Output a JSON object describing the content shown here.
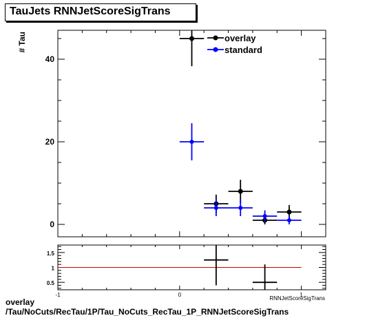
{
  "title": "TauJets RNNJetScoreSigTrans",
  "footer": {
    "line1": "overlay",
    "line2": "/Tau/NoCuts/RecTau/1P/Tau_NoCuts_RecTau_1P_RNNJetScoreSigTrans"
  },
  "chart_data": [
    {
      "type": "scatter",
      "ylabel": "# Tau",
      "xlim": [
        -1,
        1.2
      ],
      "ylim": [
        -3,
        47
      ],
      "y_ticks": [
        "0",
        "20",
        "40"
      ],
      "legend_position": "top-right",
      "series": [
        {
          "name": "overlay",
          "color": "#000000",
          "points": [
            {
              "x": 0.1,
              "y": 45,
              "xerr": 0.1,
              "yerr": 6.7
            },
            {
              "x": 0.3,
              "y": 5,
              "xerr": 0.1,
              "yerr": 2.2
            },
            {
              "x": 0.5,
              "y": 8,
              "xerr": 0.1,
              "yerr": 2.8
            },
            {
              "x": 0.7,
              "y": 1,
              "xerr": 0.1,
              "yerr": 1.0
            },
            {
              "x": 0.9,
              "y": 3,
              "xerr": 0.1,
              "yerr": 1.7
            }
          ]
        },
        {
          "name": "standard",
          "color": "#0000ff",
          "points": [
            {
              "x": 0.1,
              "y": 20,
              "xerr": 0.1,
              "yerr": 4.5
            },
            {
              "x": 0.3,
              "y": 4,
              "xerr": 0.1,
              "yerr": 2.0
            },
            {
              "x": 0.5,
              "y": 4,
              "xerr": 0.1,
              "yerr": 2.0
            },
            {
              "x": 0.7,
              "y": 2,
              "xerr": 0.1,
              "yerr": 1.4
            },
            {
              "x": 0.9,
              "y": 1,
              "xerr": 0.1,
              "yerr": 1.0
            }
          ]
        }
      ]
    },
    {
      "type": "scatter",
      "xlabel": "RNNJetScoreSigTrans",
      "xlim": [
        -1,
        1.2
      ],
      "ylim": [
        0.25,
        1.75
      ],
      "x_ticks": [
        "-1",
        "0",
        "1"
      ],
      "y_ticks": [
        "0.5",
        "1",
        "1.5"
      ],
      "reference_line": {
        "y": 1,
        "x_range": [
          -1,
          1
        ],
        "color": "#cc0000"
      },
      "series": [
        {
          "name": "",
          "color": "#000000",
          "points": [
            {
              "x": 0.3,
              "y": 1.25,
              "xerr": 0.1,
              "yerr": 0.85
            },
            {
              "x": 0.7,
              "y": 0.5,
              "xerr": 0.1,
              "yerr": 0.6
            }
          ]
        }
      ]
    }
  ]
}
